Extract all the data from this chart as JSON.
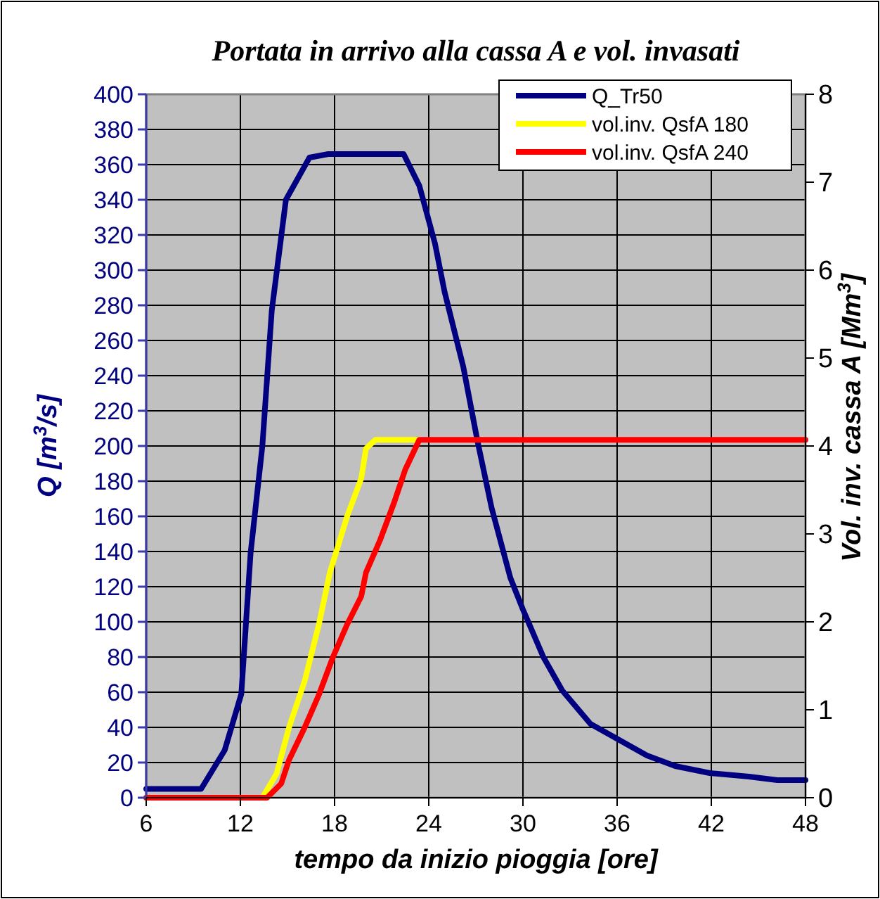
{
  "chart_data": {
    "type": "line",
    "title": "Portata in arrivo alla cassa A e vol. invasati",
    "xlabel": "tempo da inizio pioggia [ore]",
    "ylabel": "Q [m$^{3}$/s]",
    "y2label": "Vol. inv. cassa A [Mm$^{3}$]",
    "xlim": [
      6,
      48
    ],
    "xticks": [
      6,
      12,
      18,
      24,
      30,
      36,
      42,
      48
    ],
    "ylim": [
      0,
      400
    ],
    "yticks": [
      0,
      20,
      40,
      60,
      80,
      100,
      120,
      140,
      160,
      180,
      200,
      220,
      240,
      260,
      280,
      300,
      320,
      340,
      360,
      380,
      400
    ],
    "y2lim": [
      0,
      8
    ],
    "y2ticks": [
      0,
      1,
      2,
      3,
      4,
      5,
      6,
      7,
      8
    ],
    "grid": true,
    "legend": "top right",
    "marker": "none",
    "line_style": "solid",
    "series": [
      {
        "name": "Q_Tr50",
        "color": "#000080",
        "x": [
          6,
          9.5,
          11,
          12.06,
          12.65,
          13.4,
          14,
          14.9,
          16.4,
          17.6,
          22.4,
          23.4,
          24.4,
          25,
          26.2,
          27.1,
          28,
          29.2,
          30,
          31.3,
          32.5,
          34.3,
          36.1,
          37.9,
          39.7,
          41.9,
          44.4,
          46.2,
          48
        ],
        "values": [
          5,
          5,
          27,
          59,
          139,
          200,
          277,
          340,
          364,
          366,
          366,
          348,
          315,
          288,
          245,
          203,
          165,
          125,
          107,
          80,
          61,
          42,
          33,
          24,
          18,
          14,
          12,
          10,
          10
        ]
      },
      {
        "name": "vol.inv. QsfA 180",
        "color": "#ffff00",
        "axis": "y2",
        "x": [
          6,
          13.4,
          14.3,
          15.1,
          16.1,
          17,
          17.7,
          18.8,
          19.7,
          20,
          20.6,
          23.4
        ],
        "values": [
          0,
          0,
          0.27,
          0.8,
          1.33,
          1.97,
          2.56,
          3.2,
          3.63,
          3.97,
          4.07,
          4.07
        ]
      },
      {
        "name": "vol.inv. QsfA 240",
        "color": "#ff0000",
        "axis": "y2",
        "x": [
          6,
          13.7,
          14.6,
          15.1,
          16.1,
          17,
          17.9,
          18.8,
          19.7,
          20,
          20.9,
          21.8,
          22.5,
          23.4,
          48
        ],
        "values": [
          0,
          0,
          0.16,
          0.43,
          0.8,
          1.17,
          1.6,
          1.97,
          2.29,
          2.56,
          2.93,
          3.36,
          3.73,
          4.07,
          4.07
        ]
      }
    ]
  }
}
